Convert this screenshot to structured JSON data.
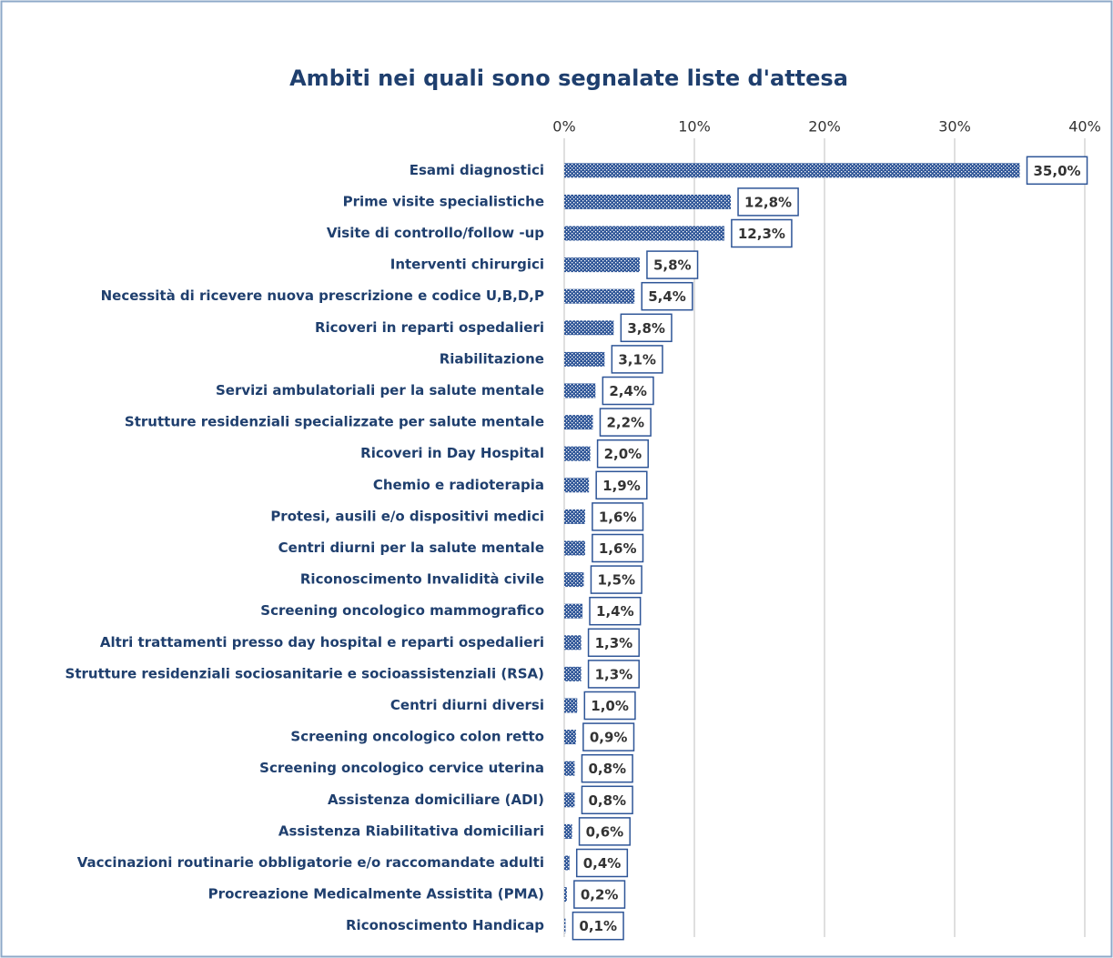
{
  "chart_data": {
    "type": "bar",
    "orientation": "horizontal",
    "title": "Ambiti nei quali sono segnalate liste d'attesa",
    "categories": [
      "Esami diagnostici",
      "Prime visite specialistiche",
      "Visite di controllo/follow -up",
      "Interventi chirurgici",
      "Necessità di ricevere nuova prescrizione e codice U,B,D,P",
      "Ricoveri in reparti ospedalieri",
      "Riabilitazione",
      "Servizi ambulatoriali per la salute mentale",
      "Strutture residenziali specializzate per salute mentale",
      "Ricoveri in Day Hospital",
      "Chemio e radioterapia",
      "Protesi, ausili e/o dispositivi medici",
      "Centri diurni per la salute mentale",
      "Riconoscimento Invalidità civile",
      "Screening oncologico mammografico",
      "Altri trattamenti presso day hospital e reparti ospedalieri",
      "Strutture residenziali sociosanitarie e socioassistenziali (RSA)",
      "Centri diurni diversi",
      "Screening oncologico colon retto",
      "Screening oncologico cervice uterina",
      "Assistenza domiciliare (ADI)",
      "Assistenza Riabilitativa domiciliari",
      "Vaccinazioni routinarie obbligatorie e/o raccomandate adulti",
      "Procreazione Medicalmente Assistita (PMA)",
      "Riconoscimento Handicap"
    ],
    "values": [
      35.0,
      12.8,
      12.3,
      5.8,
      5.4,
      3.8,
      3.1,
      2.4,
      2.2,
      2.0,
      1.9,
      1.6,
      1.6,
      1.5,
      1.4,
      1.3,
      1.3,
      1.0,
      0.9,
      0.8,
      0.8,
      0.6,
      0.4,
      0.2,
      0.1
    ],
    "value_labels": [
      "35,0%",
      "12,8%",
      "12,3%",
      "5,8%",
      "5,4%",
      "3,8%",
      "3,1%",
      "2,4%",
      "2,2%",
      "2,0%",
      "1,9%",
      "1,6%",
      "1,6%",
      "1,5%",
      "1,4%",
      "1,3%",
      "1,3%",
      "1,0%",
      "0,9%",
      "0,8%",
      "0,8%",
      "0,6%",
      "0,4%",
      "0,2%",
      "0,1%"
    ],
    "color": "#2e5597",
    "xlim": [
      0,
      40
    ],
    "xticks": [
      {
        "value": 0,
        "label": "0%"
      },
      {
        "value": 10,
        "label": "10%"
      },
      {
        "value": 20,
        "label": "20%"
      },
      {
        "value": 30,
        "label": "30%"
      },
      {
        "value": 40,
        "label": "40%"
      }
    ],
    "grid": true
  }
}
